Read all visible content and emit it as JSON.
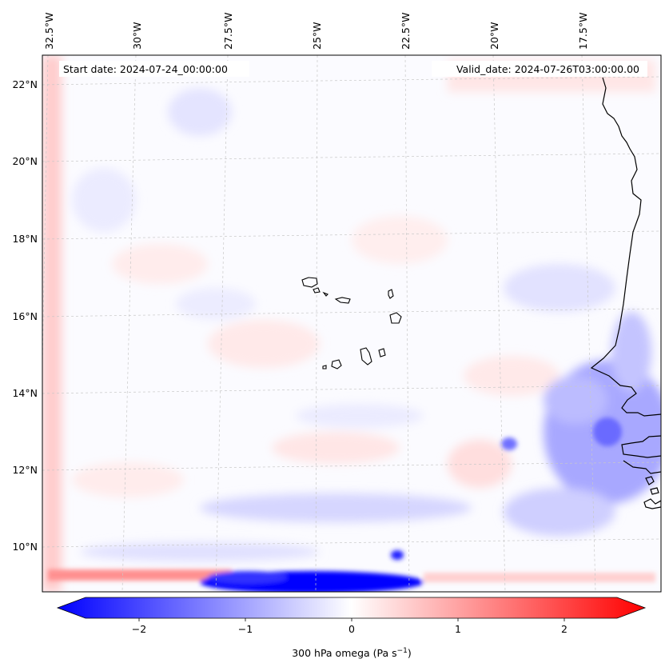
{
  "map": {
    "start_date": "Start date: 2024-07-24_00:00:00",
    "valid_date": "Valid_date: 2024-07-26T03:00:00.00",
    "lon_labels": [
      "32.5°W",
      "30°W",
      "27.5°W",
      "25°W",
      "22.5°W",
      "20°W",
      "17.5°W"
    ],
    "lat_labels": [
      "22°N",
      "20°N",
      "18°N",
      "16°N",
      "14°N",
      "12°N",
      "10°N"
    ],
    "colorbar": {
      "ticks": [
        "−2",
        "−1",
        "0",
        "1",
        "2"
      ],
      "label_main": "300 hPa omega (Pa s",
      "label_sup": "−1",
      "label_end": ")",
      "min_value": -2.5,
      "max_value": 2.5
    },
    "colors": {
      "negative": "#0000ff",
      "neutral": "#ffffff",
      "positive": "#ff0000",
      "coastline": "#000000",
      "grid": "#c8c8c8"
    }
  }
}
